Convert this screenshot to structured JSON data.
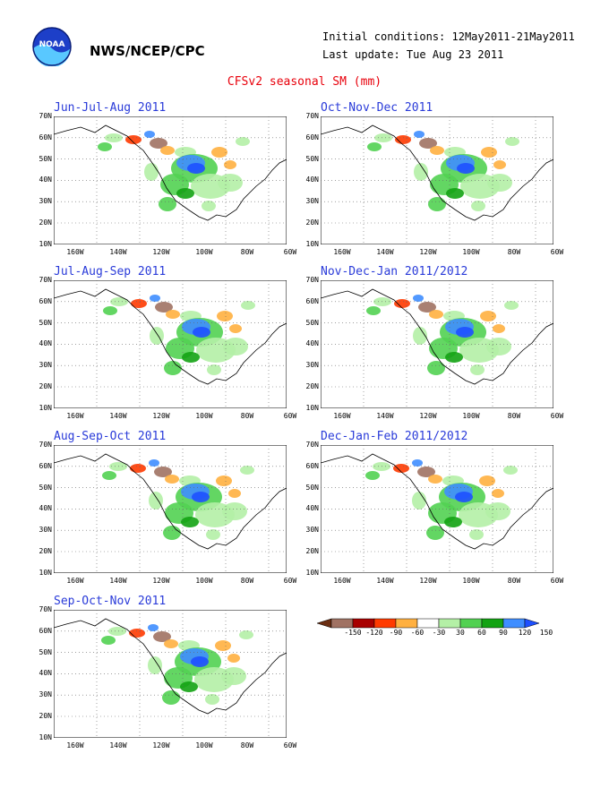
{
  "header": {
    "organization": "NWS/NCEP/CPC",
    "initial_conditions": "Initial conditions: 12May2011-21May2011",
    "last_update": "Last update: Tue Aug 23 2011",
    "title": "CFSv2 seasonal SM (mm)"
  },
  "logo": {
    "name": "noaa-logo",
    "text": "NOAA"
  },
  "axes": {
    "lat_labels": [
      "70N",
      "60N",
      "50N",
      "40N",
      "30N",
      "20N",
      "10N"
    ],
    "lon_labels": [
      "160W",
      "140W",
      "120W",
      "100W",
      "80W",
      "60W"
    ]
  },
  "panels": [
    {
      "title": "Jun-Jul-Aug 2011"
    },
    {
      "title": "Oct-Nov-Dec 2011"
    },
    {
      "title": "Jul-Aug-Sep 2011"
    },
    {
      "title": "Nov-Dec-Jan 2011/2012"
    },
    {
      "title": "Aug-Sep-Oct 2011"
    },
    {
      "title": "Dec-Jan-Feb 2011/2012"
    },
    {
      "title": "Sep-Oct-Nov 2011"
    }
  ],
  "colorbar": {
    "labels": [
      "-150",
      "-120",
      "-90",
      "-60",
      "-30",
      "30",
      "60",
      "90",
      "120",
      "150"
    ],
    "colors": [
      "#6b2e12",
      "#a07263",
      "#a80000",
      "#ff3a00",
      "#ffb040",
      "#ffffff",
      "#b4f0a6",
      "#52d152",
      "#13a313",
      "#3f8eff",
      "#1e50ff"
    ]
  },
  "colors": {
    "land_fill": "#ffffff",
    "coast": "#000000",
    "grid": "#555555",
    "panel_title": "#2a3bd9",
    "main_title": "#e8000b"
  }
}
